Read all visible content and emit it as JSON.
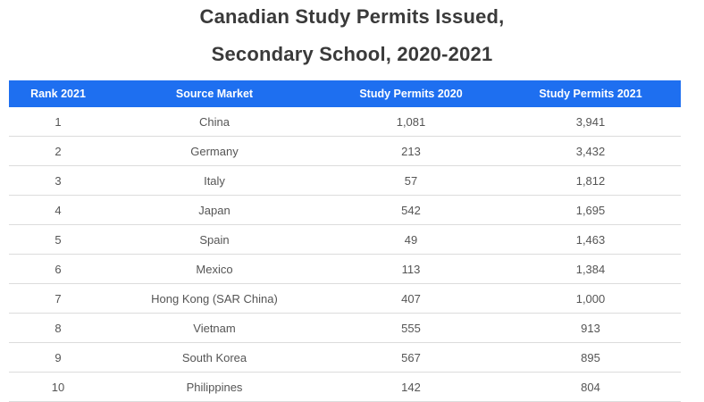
{
  "title": {
    "line1": "Canadian Study Permits Issued,",
    "line2": "Secondary School, 2020-2021"
  },
  "table": {
    "headers": [
      "Rank 2021",
      "Source Market",
      "Study Permits 2020",
      "Study Permits 2021"
    ],
    "rows": [
      [
        "1",
        "China",
        "1,081",
        "3,941"
      ],
      [
        "2",
        "Germany",
        "213",
        "3,432"
      ],
      [
        "3",
        "Italy",
        "57",
        "1,812"
      ],
      [
        "4",
        "Japan",
        "542",
        "1,695"
      ],
      [
        "5",
        "Spain",
        "49",
        "1,463"
      ],
      [
        "6",
        "Mexico",
        "113",
        "1,384"
      ],
      [
        "7",
        "Hong Kong (SAR China)",
        "407",
        "1,000"
      ],
      [
        "8",
        "Vietnam",
        "555",
        "913"
      ],
      [
        "9",
        "South Korea",
        "567",
        "895"
      ],
      [
        "10",
        "Philippines",
        "142",
        "804"
      ]
    ]
  },
  "colors": {
    "header_bg": "#1e6ff0",
    "header_text": "#ffffff",
    "row_border": "#dcdcdc"
  }
}
